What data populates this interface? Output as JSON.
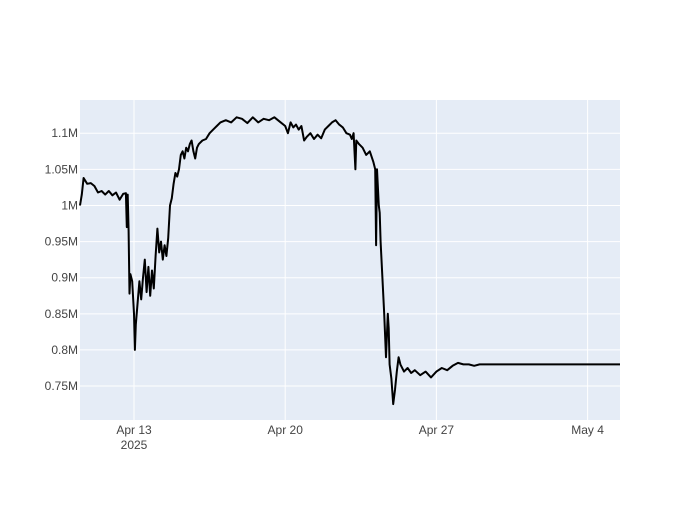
{
  "chart_data": {
    "type": "line",
    "title": "",
    "xlabel": "",
    "ylabel": "",
    "x_ticks": [
      {
        "date": "2025-04-13",
        "label": "Apr 13",
        "sublabel": "2025"
      },
      {
        "date": "2025-04-20",
        "label": "Apr 20",
        "sublabel": ""
      },
      {
        "date": "2025-04-27",
        "label": "Apr 27",
        "sublabel": ""
      },
      {
        "date": "2025-05-04",
        "label": "May 4",
        "sublabel": ""
      }
    ],
    "y_ticks": [
      {
        "value": 750000,
        "label": "0.75M"
      },
      {
        "value": 800000,
        "label": "0.8M"
      },
      {
        "value": 850000,
        "label": "0.85M"
      },
      {
        "value": 900000,
        "label": "0.9M"
      },
      {
        "value": 950000,
        "label": "0.95M"
      },
      {
        "value": 1000000,
        "label": "1M"
      },
      {
        "value": 1050000,
        "label": "1.05M"
      },
      {
        "value": 1100000,
        "label": "1.1M"
      }
    ],
    "xlim": [
      "2025-04-10 12:00",
      "2025-05-05 12:00"
    ],
    "ylim": [
      703000,
      1146000
    ],
    "grid": true,
    "colors": {
      "plot_bg": "#e5ecf6",
      "grid": "#ffffff",
      "line": "#000000"
    },
    "series": [
      {
        "name": "",
        "points": [
          [
            "2025-04-10 12:00",
            1000000
          ],
          [
            "2025-04-10 14:00",
            1015000
          ],
          [
            "2025-04-10 16:00",
            1038000
          ],
          [
            "2025-04-10 20:00",
            1030000
          ],
          [
            "2025-04-11 00:00",
            1031000
          ],
          [
            "2025-04-11 04:00",
            1027000
          ],
          [
            "2025-04-11 08:00",
            1018000
          ],
          [
            "2025-04-11 12:00",
            1020000
          ],
          [
            "2025-04-11 16:00",
            1015000
          ],
          [
            "2025-04-11 20:00",
            1020000
          ],
          [
            "2025-04-12 00:00",
            1014000
          ],
          [
            "2025-04-12 04:00",
            1018000
          ],
          [
            "2025-04-12 08:00",
            1008000
          ],
          [
            "2025-04-12 12:00",
            1016000
          ],
          [
            "2025-04-12 15:00",
            1017000
          ],
          [
            "2025-04-12 16:00",
            970000
          ],
          [
            "2025-04-12 17:00",
            1015000
          ],
          [
            "2025-04-12 18:00",
            965000
          ],
          [
            "2025-04-12 19:00",
            878000
          ],
          [
            "2025-04-12 20:00",
            905000
          ],
          [
            "2025-04-12 22:00",
            895000
          ],
          [
            "2025-04-13 00:00",
            850000
          ],
          [
            "2025-04-13 01:00",
            800000
          ],
          [
            "2025-04-13 02:00",
            835000
          ],
          [
            "2025-04-13 04:00",
            865000
          ],
          [
            "2025-04-13 06:00",
            895000
          ],
          [
            "2025-04-13 08:00",
            870000
          ],
          [
            "2025-04-13 10:00",
            900000
          ],
          [
            "2025-04-13 12:00",
            925000
          ],
          [
            "2025-04-13 14:00",
            880000
          ],
          [
            "2025-04-13 16:00",
            915000
          ],
          [
            "2025-04-13 18:00",
            875000
          ],
          [
            "2025-04-13 20:00",
            910000
          ],
          [
            "2025-04-13 22:00",
            885000
          ],
          [
            "2025-04-14 00:00",
            930000
          ],
          [
            "2025-04-14 02:00",
            968000
          ],
          [
            "2025-04-14 04:00",
            935000
          ],
          [
            "2025-04-14 06:00",
            950000
          ],
          [
            "2025-04-14 08:00",
            925000
          ],
          [
            "2025-04-14 10:00",
            945000
          ],
          [
            "2025-04-14 12:00",
            930000
          ],
          [
            "2025-04-14 14:00",
            955000
          ],
          [
            "2025-04-14 16:00",
            1000000
          ],
          [
            "2025-04-14 18:00",
            1010000
          ],
          [
            "2025-04-14 20:00",
            1030000
          ],
          [
            "2025-04-14 22:00",
            1045000
          ],
          [
            "2025-04-15 00:00",
            1040000
          ],
          [
            "2025-04-15 02:00",
            1050000
          ],
          [
            "2025-04-15 04:00",
            1070000
          ],
          [
            "2025-04-15 06:00",
            1075000
          ],
          [
            "2025-04-15 08:00",
            1065000
          ],
          [
            "2025-04-15 10:00",
            1080000
          ],
          [
            "2025-04-15 12:00",
            1075000
          ],
          [
            "2025-04-15 14:00",
            1085000
          ],
          [
            "2025-04-15 16:00",
            1090000
          ],
          [
            "2025-04-15 18:00",
            1075000
          ],
          [
            "2025-04-15 20:00",
            1065000
          ],
          [
            "2025-04-15 22:00",
            1080000
          ],
          [
            "2025-04-16 00:00",
            1085000
          ],
          [
            "2025-04-16 04:00",
            1090000
          ],
          [
            "2025-04-16 08:00",
            1092000
          ],
          [
            "2025-04-16 12:00",
            1100000
          ],
          [
            "2025-04-16 16:00",
            1105000
          ],
          [
            "2025-04-16 20:00",
            1110000
          ],
          [
            "2025-04-17 00:00",
            1115000
          ],
          [
            "2025-04-17 06:00",
            1118000
          ],
          [
            "2025-04-17 12:00",
            1115000
          ],
          [
            "2025-04-17 18:00",
            1122000
          ],
          [
            "2025-04-18 00:00",
            1120000
          ],
          [
            "2025-04-18 06:00",
            1114000
          ],
          [
            "2025-04-18 12:00",
            1122000
          ],
          [
            "2025-04-18 18:00",
            1115000
          ],
          [
            "2025-04-19 00:00",
            1120000
          ],
          [
            "2025-04-19 06:00",
            1118000
          ],
          [
            "2025-04-19 12:00",
            1122000
          ],
          [
            "2025-04-19 18:00",
            1116000
          ],
          [
            "2025-04-20 00:00",
            1110000
          ],
          [
            "2025-04-20 03:00",
            1100000
          ],
          [
            "2025-04-20 06:00",
            1115000
          ],
          [
            "2025-04-20 09:00",
            1108000
          ],
          [
            "2025-04-20 12:00",
            1112000
          ],
          [
            "2025-04-20 15:00",
            1105000
          ],
          [
            "2025-04-20 18:00",
            1110000
          ],
          [
            "2025-04-20 21:00",
            1090000
          ],
          [
            "2025-04-21 00:00",
            1095000
          ],
          [
            "2025-04-21 04:00",
            1100000
          ],
          [
            "2025-04-21 08:00",
            1092000
          ],
          [
            "2025-04-21 12:00",
            1098000
          ],
          [
            "2025-04-21 16:00",
            1093000
          ],
          [
            "2025-04-21 20:00",
            1105000
          ],
          [
            "2025-04-22 00:00",
            1110000
          ],
          [
            "2025-04-22 04:00",
            1115000
          ],
          [
            "2025-04-22 08:00",
            1118000
          ],
          [
            "2025-04-22 12:00",
            1112000
          ],
          [
            "2025-04-22 16:00",
            1108000
          ],
          [
            "2025-04-22 20:00",
            1100000
          ],
          [
            "2025-04-23 00:00",
            1098000
          ],
          [
            "2025-04-23 02:00",
            1092000
          ],
          [
            "2025-04-23 04:00",
            1100000
          ],
          [
            "2025-04-23 06:00",
            1050000
          ],
          [
            "2025-04-23 07:00",
            1090000
          ],
          [
            "2025-04-23 10:00",
            1085000
          ],
          [
            "2025-04-23 14:00",
            1080000
          ],
          [
            "2025-04-23 18:00",
            1070000
          ],
          [
            "2025-04-23 22:00",
            1075000
          ],
          [
            "2025-04-24 02:00",
            1060000
          ],
          [
            "2025-04-24 04:00",
            1050000
          ],
          [
            "2025-04-24 05:00",
            945000
          ],
          [
            "2025-04-24 06:00",
            1050000
          ],
          [
            "2025-04-24 08:00",
            1000000
          ],
          [
            "2025-04-24 09:00",
            990000
          ],
          [
            "2025-04-24 10:00",
            950000
          ],
          [
            "2025-04-24 12:00",
            900000
          ],
          [
            "2025-04-24 14:00",
            850000
          ],
          [
            "2025-04-24 16:00",
            790000
          ],
          [
            "2025-04-24 18:00",
            850000
          ],
          [
            "2025-04-24 19:00",
            830000
          ],
          [
            "2025-04-24 20:00",
            780000
          ],
          [
            "2025-04-24 22:00",
            760000
          ],
          [
            "2025-04-25 00:00",
            725000
          ],
          [
            "2025-04-25 02:00",
            745000
          ],
          [
            "2025-04-25 04:00",
            770000
          ],
          [
            "2025-04-25 06:00",
            790000
          ],
          [
            "2025-04-25 08:00",
            780000
          ],
          [
            "2025-04-25 12:00",
            770000
          ],
          [
            "2025-04-25 16:00",
            775000
          ],
          [
            "2025-04-25 20:00",
            768000
          ],
          [
            "2025-04-26 00:00",
            772000
          ],
          [
            "2025-04-26 06:00",
            765000
          ],
          [
            "2025-04-26 12:00",
            770000
          ],
          [
            "2025-04-26 18:00",
            762000
          ],
          [
            "2025-04-27 00:00",
            770000
          ],
          [
            "2025-04-27 06:00",
            775000
          ],
          [
            "2025-04-27 12:00",
            772000
          ],
          [
            "2025-04-27 18:00",
            778000
          ],
          [
            "2025-04-28 00:00",
            782000
          ],
          [
            "2025-04-28 06:00",
            780000
          ],
          [
            "2025-04-28 12:00",
            780000
          ],
          [
            "2025-04-28 18:00",
            778000
          ],
          [
            "2025-04-29 00:00",
            780000
          ],
          [
            "2025-05-05 12:00",
            780000
          ]
        ]
      }
    ]
  }
}
